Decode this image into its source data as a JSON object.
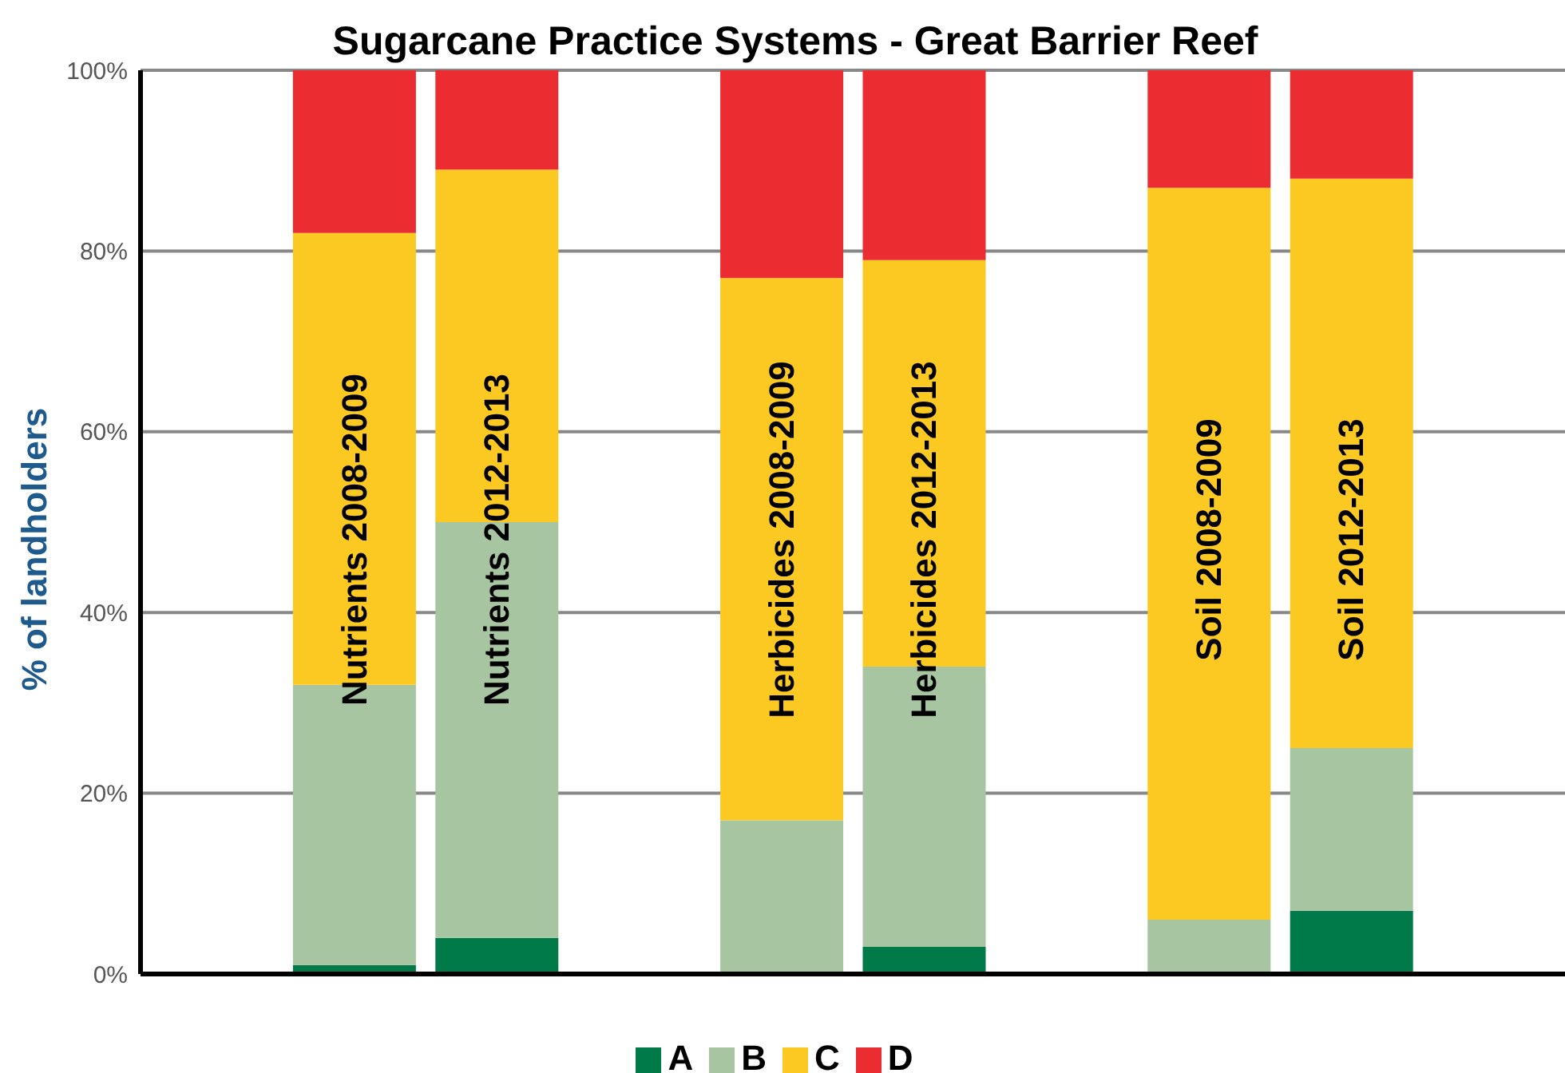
{
  "chart_data": {
    "type": "bar",
    "title": "Sugarcane Practice Systems - Great Barrier Reef",
    "ylabel": "% of landholders",
    "categories": [
      null,
      "Nutrients 2008-2009",
      "Nutrients 2012-2013",
      null,
      "Herbicides 2008-2009",
      "Herbicides 2012-2013",
      null,
      "Soil 2008-2009",
      "Soil 2012-2013",
      null
    ],
    "stacked": true,
    "series": [
      {
        "name": "A",
        "color": "#007a48",
        "values": [
          null,
          1,
          4,
          null,
          0,
          3,
          null,
          0,
          7,
          null
        ]
      },
      {
        "name": "B",
        "color": "#a8c5a2",
        "values": [
          null,
          31,
          46,
          null,
          17,
          31,
          null,
          6,
          18,
          null
        ]
      },
      {
        "name": "C",
        "color": "#fcc923",
        "values": [
          null,
          50,
          39,
          null,
          60,
          45,
          null,
          81,
          63,
          null
        ]
      },
      {
        "name": "D",
        "color": "#eb2d32",
        "values": [
          null,
          18,
          11,
          null,
          23,
          21,
          null,
          13,
          12,
          null
        ]
      }
    ],
    "ylim": [
      0,
      100
    ],
    "yticks": [
      {
        "value": 0,
        "label": "0%"
      },
      {
        "value": 20,
        "label": "20%"
      },
      {
        "value": 40,
        "label": "40%"
      },
      {
        "value": 60,
        "label": "60%"
      },
      {
        "value": 80,
        "label": "80%"
      },
      {
        "value": 100,
        "label": "100%"
      }
    ],
    "grid": "y",
    "legend": "bottom"
  }
}
